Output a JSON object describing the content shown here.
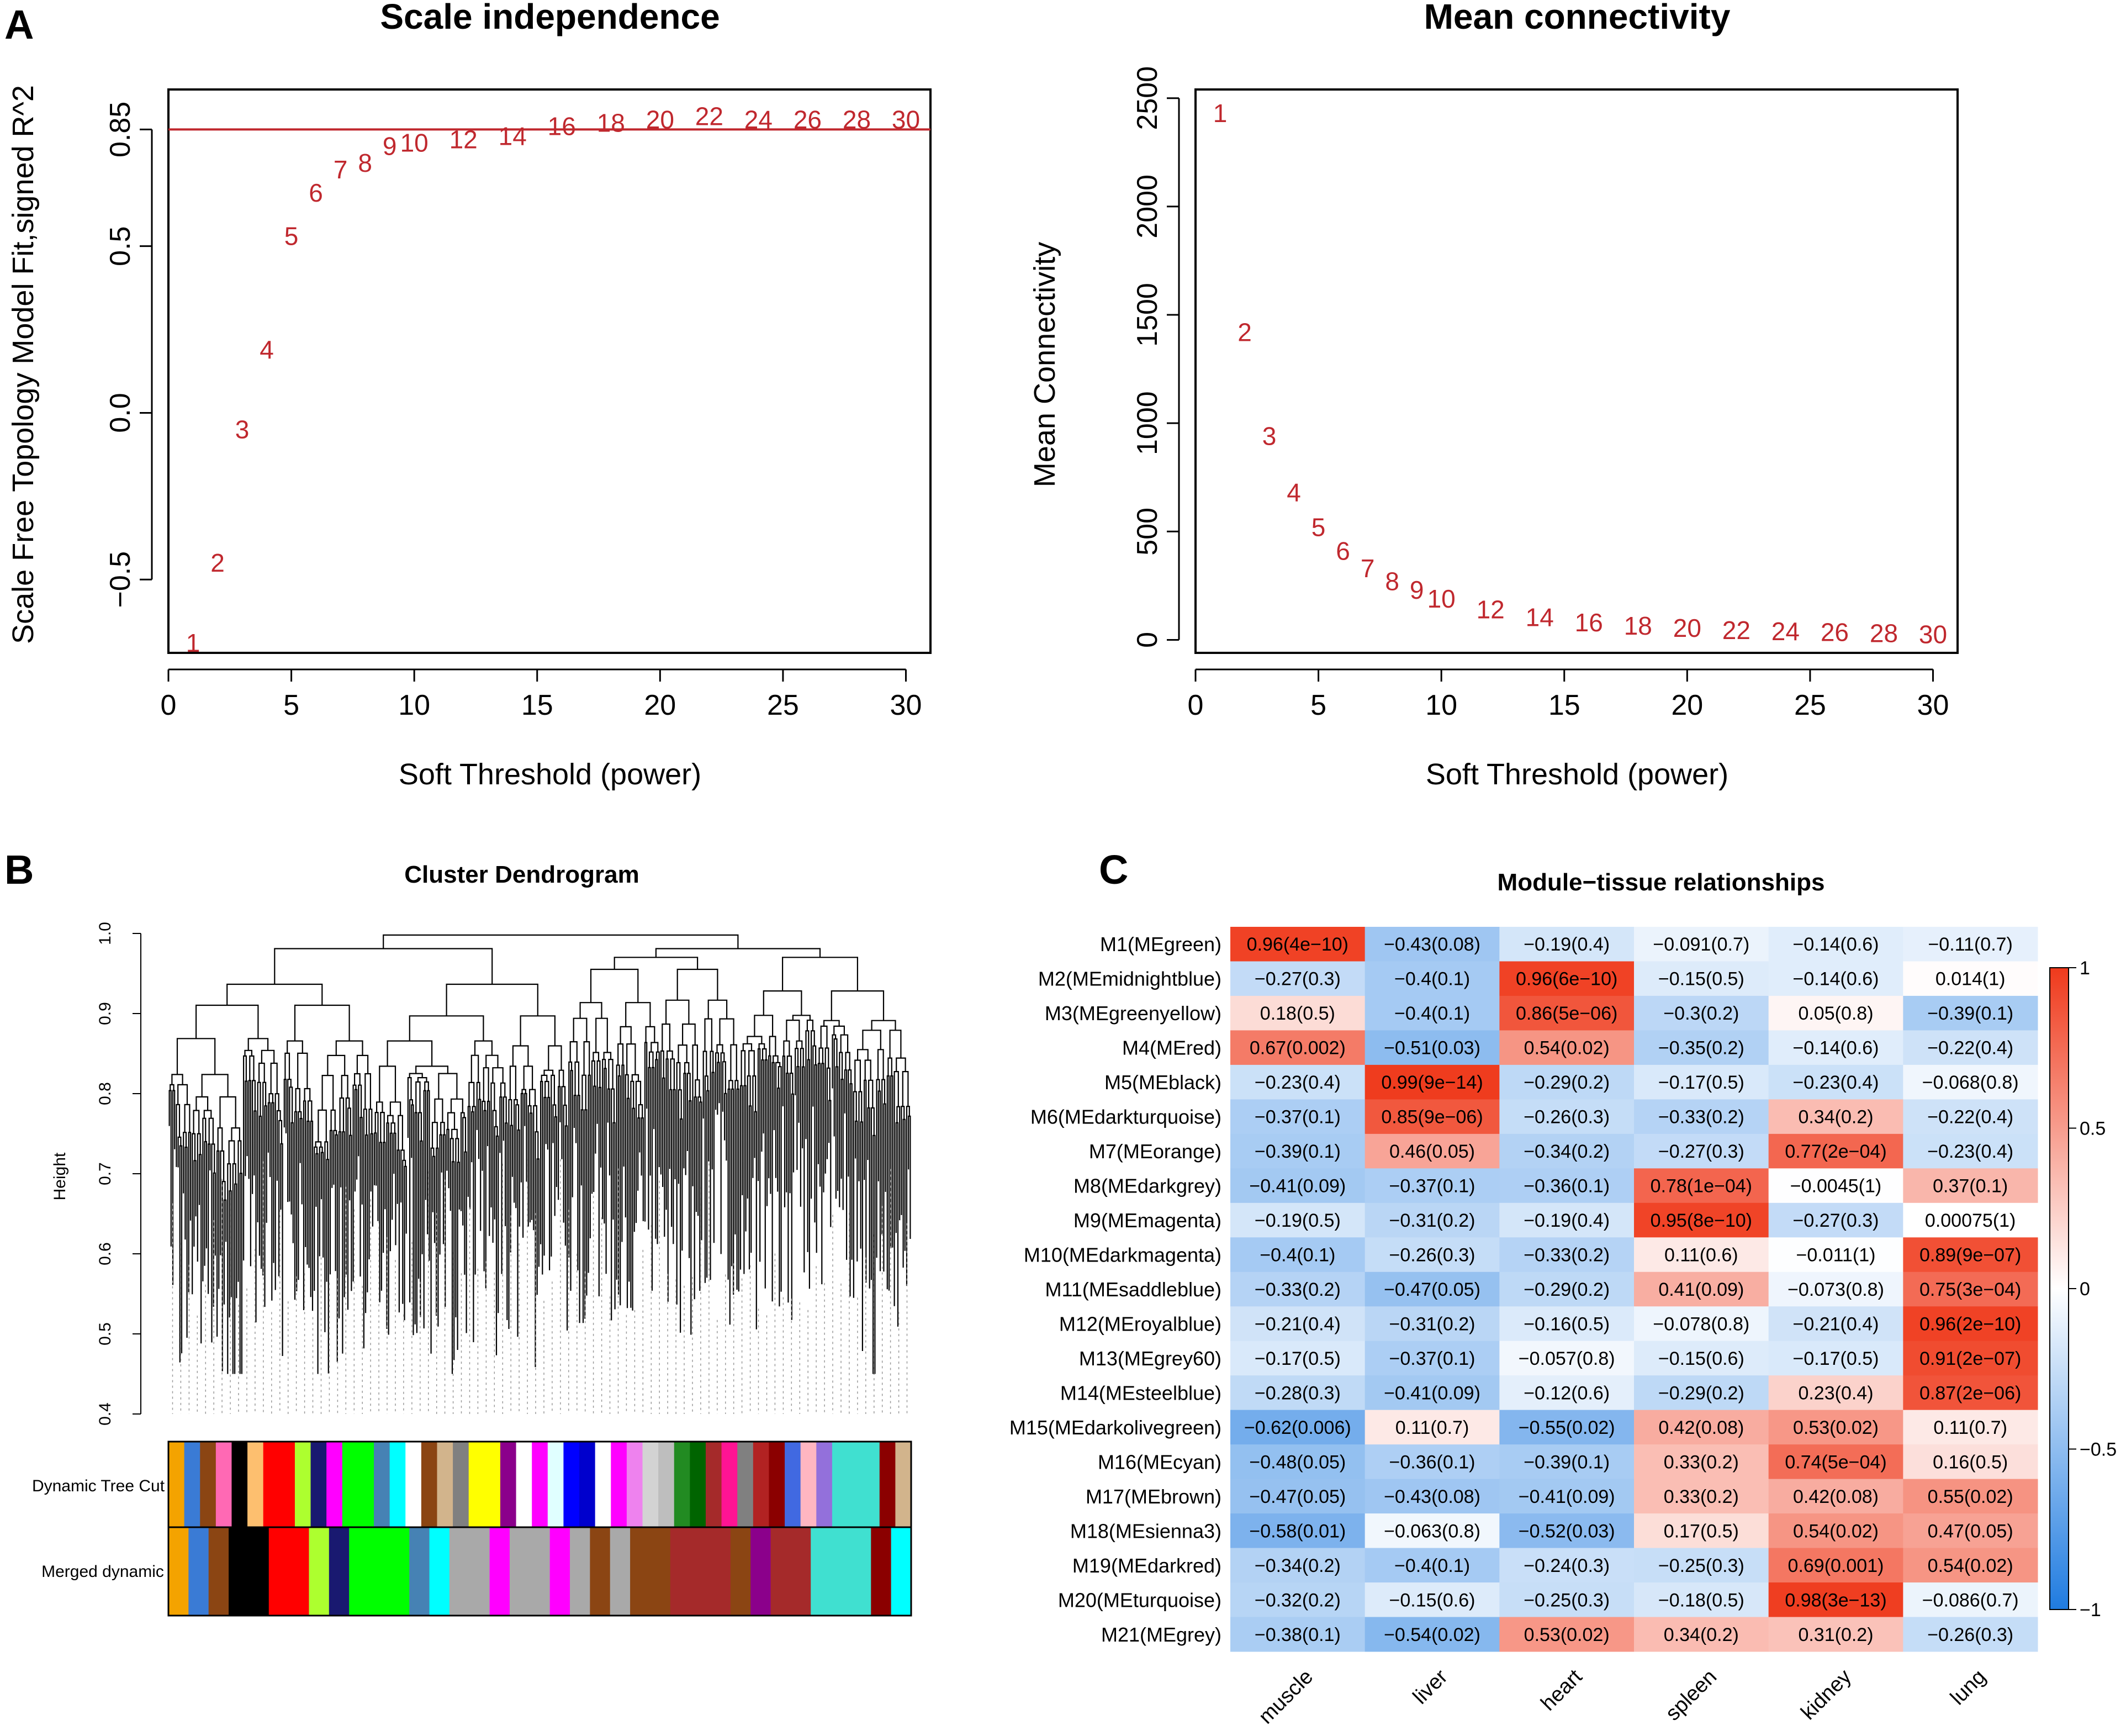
{
  "figure": {
    "panel_labels": [
      "A",
      "B",
      "C"
    ]
  },
  "colors": {
    "point_text": "#c0282e",
    "threshold_line": "#c0282e",
    "heat_negative": "#1f7be0",
    "heat_neutral": "#ffffff",
    "heat_positive": "#ef3a1c"
  },
  "chart_data": [
    {
      "type": "scatter",
      "panel": "A-left",
      "title": "Scale independence",
      "xlabel": "Soft Threshold (power)",
      "ylabel": "Scale Free Topology Model Fit,signed R^2",
      "xlim": [
        0,
        31
      ],
      "ylim": [
        -0.72,
        0.97
      ],
      "xticks": [
        0,
        5,
        10,
        15,
        20,
        25,
        30
      ],
      "yticks": [
        -0.5,
        0.0,
        0.5,
        0.85
      ],
      "ytick_labels": [
        "-0.5",
        "0.0",
        "0.5",
        "0.85"
      ],
      "hline": 0.85,
      "points": [
        {
          "label": "1",
          "x": 1,
          "y": -0.69
        },
        {
          "label": "2",
          "x": 2,
          "y": -0.45
        },
        {
          "label": "3",
          "x": 3,
          "y": -0.05
        },
        {
          "label": "4",
          "x": 4,
          "y": 0.19
        },
        {
          "label": "5",
          "x": 5,
          "y": 0.53
        },
        {
          "label": "6",
          "x": 6,
          "y": 0.66
        },
        {
          "label": "7",
          "x": 7,
          "y": 0.73
        },
        {
          "label": "8",
          "x": 8,
          "y": 0.75
        },
        {
          "label": "9",
          "x": 9,
          "y": 0.8
        },
        {
          "label": "10",
          "x": 10,
          "y": 0.81
        },
        {
          "label": "12",
          "x": 12,
          "y": 0.82
        },
        {
          "label": "14",
          "x": 14,
          "y": 0.83
        },
        {
          "label": "16",
          "x": 16,
          "y": 0.86
        },
        {
          "label": "18",
          "x": 18,
          "y": 0.87
        },
        {
          "label": "20",
          "x": 20,
          "y": 0.88
        },
        {
          "label": "22",
          "x": 22,
          "y": 0.89
        },
        {
          "label": "24",
          "x": 24,
          "y": 0.88
        },
        {
          "label": "26",
          "x": 26,
          "y": 0.88
        },
        {
          "label": "28",
          "x": 28,
          "y": 0.88
        },
        {
          "label": "30",
          "x": 30,
          "y": 0.88
        }
      ]
    },
    {
      "type": "scatter",
      "panel": "A-right",
      "title": "Mean connectivity",
      "xlabel": "Soft Threshold (power)",
      "ylabel": "Mean Connectivity",
      "xlim": [
        0,
        31
      ],
      "ylim": [
        -60,
        2540
      ],
      "xticks": [
        0,
        5,
        10,
        15,
        20,
        25,
        30
      ],
      "yticks": [
        0,
        500,
        1000,
        1500,
        2000,
        2500
      ],
      "points": [
        {
          "label": "1",
          "x": 1,
          "y": 2430
        },
        {
          "label": "2",
          "x": 2,
          "y": 1420
        },
        {
          "label": "3",
          "x": 3,
          "y": 940
        },
        {
          "label": "4",
          "x": 4,
          "y": 680
        },
        {
          "label": "5",
          "x": 5,
          "y": 520
        },
        {
          "label": "6",
          "x": 6,
          "y": 410
        },
        {
          "label": "7",
          "x": 7,
          "y": 330
        },
        {
          "label": "8",
          "x": 8,
          "y": 270
        },
        {
          "label": "9",
          "x": 9,
          "y": 230
        },
        {
          "label": "10",
          "x": 10,
          "y": 190
        },
        {
          "label": "12",
          "x": 12,
          "y": 140
        },
        {
          "label": "14",
          "x": 14,
          "y": 105
        },
        {
          "label": "16",
          "x": 16,
          "y": 80
        },
        {
          "label": "18",
          "x": 18,
          "y": 65
        },
        {
          "label": "20",
          "x": 20,
          "y": 55
        },
        {
          "label": "22",
          "x": 22,
          "y": 45
        },
        {
          "label": "24",
          "x": 24,
          "y": 40
        },
        {
          "label": "26",
          "x": 26,
          "y": 35
        },
        {
          "label": "28",
          "x": 28,
          "y": 30
        },
        {
          "label": "30",
          "x": 30,
          "y": 25
        }
      ]
    },
    {
      "type": "dendrogram",
      "panel": "B",
      "title": "Cluster Dendrogram",
      "ylabel": "Height",
      "ylim": [
        0.4,
        1.0
      ],
      "yticks": [
        0.4,
        0.5,
        0.6,
        0.7,
        0.8,
        0.9,
        1.0
      ],
      "ytick_labels": [
        "0.4",
        "0.5",
        "0.6",
        "0.7",
        "0.8",
        "0.9",
        "1.0"
      ],
      "color_rows": [
        "Dynamic Tree Cut",
        "Merged dynamic"
      ],
      "dynamic_tree_cut_colors": [
        "#f4a300",
        "#3a7bd5",
        "#8b4513",
        "#ff69b4",
        "#000000",
        "#fdbf6f",
        "#ff0000",
        "#ff0000",
        "#adff2f",
        "#191970",
        "#ff00ff",
        "#00ff00",
        "#00ff00",
        "#4682b4",
        "#00ffff",
        "#ffffff",
        "#8b4513",
        "#d2b48c",
        "#808080",
        "#ffff00",
        "#ffff00",
        "#8b008b",
        "#ffffff",
        "#ff00ff",
        "#e0ffff",
        "#0000ff",
        "#0000cd",
        "#ffffff",
        "#ff00ff",
        "#ee82ee",
        "#d3d3d3",
        "#bebebe",
        "#228b22",
        "#006400",
        "#a52a2a",
        "#ff1493",
        "#808080",
        "#b22222",
        "#8b0000",
        "#4169e1",
        "#ffb6c1",
        "#9370db",
        "#40e0d0",
        "#40e0d0",
        "#40e0d0",
        "#8b0000",
        "#d2b48c"
      ],
      "merged_dynamic_colors": [
        "#f4a300",
        "#3a7bd5",
        "#8b4513",
        "#000000",
        "#000000",
        "#ff0000",
        "#ff0000",
        "#adff2f",
        "#191970",
        "#00ff00",
        "#00ff00",
        "#00ff00",
        "#4682b4",
        "#00ffff",
        "#a9a9a9",
        "#a9a9a9",
        "#ff00ff",
        "#a9a9a9",
        "#a9a9a9",
        "#ff00ff",
        "#a9a9a9",
        "#8b4513",
        "#a9a9a9",
        "#8b4513",
        "#8b4513",
        "#a52a2a",
        "#a52a2a",
        "#a52a2a",
        "#8b4513",
        "#8b008b",
        "#a52a2a",
        "#a52a2a",
        "#40e0d0",
        "#40e0d0",
        "#40e0d0",
        "#8b0000",
        "#00ffff"
      ]
    },
    {
      "type": "heatmap",
      "panel": "C",
      "title": "Module−tissue relationships",
      "columns": [
        "muscle",
        "liver",
        "heart",
        "spleen",
        "kidney",
        "lung"
      ],
      "rows": [
        "M1(MEgreen)",
        "M2(MEmidnightblue)",
        "M3(MEgreenyellow)",
        "M4(MEred)",
        "M5(MEblack)",
        "M6(MEdarkturquoise)",
        "M7(MEorange)",
        "M8(MEdarkgrey)",
        "M9(MEmagenta)",
        "M10(MEdarkmagenta)",
        "M11(MEsaddleblue)",
        "M12(MEroyalblue)",
        "M13(MEgrey60)",
        "M14(MEsteelblue)",
        "M15(MEdarkolivegreen)",
        "M16(MEcyan)",
        "M17(MEbrown)",
        "M18(MEsienna3)",
        "M19(MEdarkred)",
        "M20(MEturquoise)",
        "M21(MEgrey)"
      ],
      "values": [
        [
          0.96,
          -0.43,
          -0.19,
          -0.091,
          -0.14,
          -0.11
        ],
        [
          -0.27,
          -0.4,
          0.96,
          -0.15,
          -0.14,
          0.014
        ],
        [
          0.18,
          -0.4,
          0.86,
          -0.3,
          0.05,
          -0.39
        ],
        [
          0.67,
          -0.51,
          0.54,
          -0.35,
          -0.14,
          -0.22
        ],
        [
          -0.23,
          0.99,
          -0.29,
          -0.17,
          -0.23,
          -0.068
        ],
        [
          -0.37,
          0.85,
          -0.26,
          -0.33,
          0.34,
          -0.22
        ],
        [
          -0.39,
          0.46,
          -0.34,
          -0.27,
          0.77,
          -0.23
        ],
        [
          -0.41,
          -0.37,
          -0.36,
          0.78,
          -0.0045,
          0.37
        ],
        [
          -0.19,
          -0.31,
          -0.19,
          0.95,
          -0.27,
          0.00075
        ],
        [
          -0.4,
          -0.26,
          -0.33,
          0.11,
          -0.011,
          0.89
        ],
        [
          -0.33,
          -0.47,
          -0.29,
          0.41,
          -0.073,
          0.75
        ],
        [
          -0.21,
          -0.31,
          -0.16,
          -0.078,
          -0.21,
          0.96
        ],
        [
          -0.17,
          -0.37,
          -0.057,
          -0.15,
          -0.17,
          0.91
        ],
        [
          -0.28,
          -0.41,
          -0.12,
          -0.29,
          0.23,
          0.87
        ],
        [
          -0.62,
          0.11,
          -0.55,
          0.42,
          0.53,
          0.11
        ],
        [
          -0.48,
          -0.36,
          -0.39,
          0.33,
          0.74,
          0.16
        ],
        [
          -0.47,
          -0.43,
          -0.41,
          0.33,
          0.42,
          0.55
        ],
        [
          -0.58,
          -0.063,
          -0.52,
          0.17,
          0.54,
          0.47
        ],
        [
          -0.34,
          -0.4,
          -0.24,
          -0.25,
          0.69,
          0.54
        ],
        [
          -0.32,
          -0.15,
          -0.25,
          -0.18,
          0.98,
          -0.086
        ],
        [
          -0.38,
          -0.54,
          0.53,
          0.34,
          0.31,
          -0.26
        ]
      ],
      "cell_labels": [
        [
          "0.96(4e−10)",
          "−0.43(0.08)",
          "−0.19(0.4)",
          "−0.091(0.7)",
          "−0.14(0.6)",
          "−0.11(0.7)"
        ],
        [
          "−0.27(0.3)",
          "−0.4(0.1)",
          "0.96(6e−10)",
          "−0.15(0.5)",
          "−0.14(0.6)",
          "0.014(1)"
        ],
        [
          "0.18(0.5)",
          "−0.4(0.1)",
          "0.86(5e−06)",
          "−0.3(0.2)",
          "0.05(0.8)",
          "−0.39(0.1)"
        ],
        [
          "0.67(0.002)",
          "−0.51(0.03)",
          "0.54(0.02)",
          "−0.35(0.2)",
          "−0.14(0.6)",
          "−0.22(0.4)"
        ],
        [
          "−0.23(0.4)",
          "0.99(9e−14)",
          "−0.29(0.2)",
          "−0.17(0.5)",
          "−0.23(0.4)",
          "−0.068(0.8)"
        ],
        [
          "−0.37(0.1)",
          "0.85(9e−06)",
          "−0.26(0.3)",
          "−0.33(0.2)",
          "0.34(0.2)",
          "−0.22(0.4)"
        ],
        [
          "−0.39(0.1)",
          "0.46(0.05)",
          "−0.34(0.2)",
          "−0.27(0.3)",
          "0.77(2e−04)",
          "−0.23(0.4)"
        ],
        [
          "−0.41(0.09)",
          "−0.37(0.1)",
          "−0.36(0.1)",
          "0.78(1e−04)",
          "−0.0045(1)",
          "0.37(0.1)"
        ],
        [
          "−0.19(0.5)",
          "−0.31(0.2)",
          "−0.19(0.4)",
          "0.95(8e−10)",
          "−0.27(0.3)",
          "0.00075(1)"
        ],
        [
          "−0.4(0.1)",
          "−0.26(0.3)",
          "−0.33(0.2)",
          "0.11(0.6)",
          "−0.011(1)",
          "0.89(9e−07)"
        ],
        [
          "−0.33(0.2)",
          "−0.47(0.05)",
          "−0.29(0.2)",
          "0.41(0.09)",
          "−0.073(0.8)",
          "0.75(3e−04)"
        ],
        [
          "−0.21(0.4)",
          "−0.31(0.2)",
          "−0.16(0.5)",
          "−0.078(0.8)",
          "−0.21(0.4)",
          "0.96(2e−10)"
        ],
        [
          "−0.17(0.5)",
          "−0.37(0.1)",
          "−0.057(0.8)",
          "−0.15(0.6)",
          "−0.17(0.5)",
          "0.91(2e−07)"
        ],
        [
          "−0.28(0.3)",
          "−0.41(0.09)",
          "−0.12(0.6)",
          "−0.29(0.2)",
          "0.23(0.4)",
          "0.87(2e−06)"
        ],
        [
          "−0.62(0.006)",
          "0.11(0.7)",
          "−0.55(0.02)",
          "0.42(0.08)",
          "0.53(0.02)",
          "0.11(0.7)"
        ],
        [
          "−0.48(0.05)",
          "−0.36(0.1)",
          "−0.39(0.1)",
          "0.33(0.2)",
          "0.74(5e−04)",
          "0.16(0.5)"
        ],
        [
          "−0.47(0.05)",
          "−0.43(0.08)",
          "−0.41(0.09)",
          "0.33(0.2)",
          "0.42(0.08)",
          "0.55(0.02)"
        ],
        [
          "−0.58(0.01)",
          "−0.063(0.8)",
          "−0.52(0.03)",
          "0.17(0.5)",
          "0.54(0.02)",
          "0.47(0.05)"
        ],
        [
          "−0.34(0.2)",
          "−0.4(0.1)",
          "−0.24(0.3)",
          "−0.25(0.3)",
          "0.69(0.001)",
          "0.54(0.02)"
        ],
        [
          "−0.32(0.2)",
          "−0.15(0.6)",
          "−0.25(0.3)",
          "−0.18(0.5)",
          "0.98(3e−13)",
          "−0.086(0.7)"
        ],
        [
          "−0.38(0.1)",
          "−0.54(0.02)",
          "0.53(0.02)",
          "0.34(0.2)",
          "0.31(0.2)",
          "−0.26(0.3)"
        ]
      ],
      "colorbar_range": [
        -1,
        1
      ],
      "colorbar_ticks": [
        1,
        0.5,
        0,
        -0.5,
        -1
      ],
      "colorbar_tick_labels": [
        "1",
        "0.5",
        "0",
        "−0.5",
        "−1"
      ]
    }
  ]
}
